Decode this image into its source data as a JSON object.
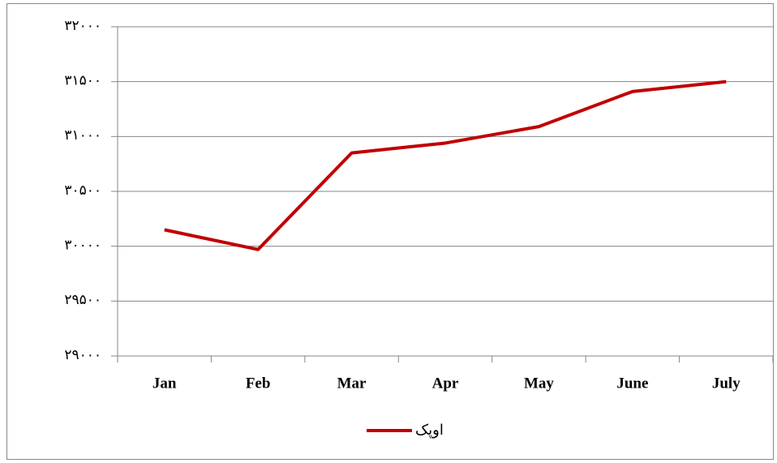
{
  "chart_data": {
    "type": "line",
    "categories": [
      "Jan",
      "Feb",
      "Mar",
      "Apr",
      "May",
      "June",
      "July"
    ],
    "series": [
      {
        "name": "اوپک",
        "color": "#c00000",
        "values": [
          30150,
          29970,
          30850,
          30940,
          31090,
          31410,
          31500
        ]
      }
    ],
    "ylim": [
      29000,
      32000
    ],
    "yticks": [
      {
        "value": 29000,
        "label": "۲۹۰۰۰"
      },
      {
        "value": 29500,
        "label": "۲۹۵۰۰"
      },
      {
        "value": 30000,
        "label": "۳۰۰۰۰"
      },
      {
        "value": 30500,
        "label": "۳۰۵۰۰"
      },
      {
        "value": 31000,
        "label": "۳۱۰۰۰"
      },
      {
        "value": 31500,
        "label": "۳۱۵۰۰"
      },
      {
        "value": 32000,
        "label": "۳۲۰۰۰"
      }
    ],
    "grid": true,
    "legend": "bottom"
  }
}
